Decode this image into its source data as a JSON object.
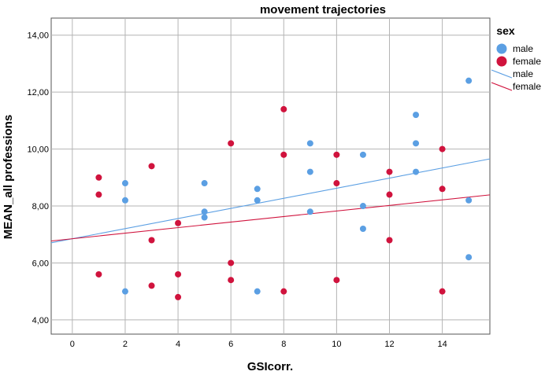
{
  "chart_data": {
    "type": "scatter",
    "title": "movement trajectories",
    "xlabel": "GSIcorr.",
    "ylabel": "MEAN_all professions",
    "xlim": [
      -0.8,
      15.8
    ],
    "ylim": [
      3.5,
      14.6
    ],
    "x_ticks": [
      0,
      2,
      4,
      6,
      8,
      10,
      12,
      14
    ],
    "x_tick_labels": [
      "0",
      "2",
      "4",
      "6",
      "8",
      "10",
      "12",
      "14"
    ],
    "y_ticks": [
      4,
      6,
      8,
      10,
      12,
      14
    ],
    "y_tick_labels": [
      "4,00",
      "6,00",
      "8,00",
      "10,00",
      "12,00",
      "14,00"
    ],
    "grid": true,
    "legend": {
      "title": "sex",
      "placement": "right",
      "entries": [
        {
          "label": "male",
          "kind": "marker",
          "color": "#5b9fe3"
        },
        {
          "label": "female",
          "kind": "marker",
          "color": "#d0133d"
        },
        {
          "label": "male",
          "kind": "line",
          "color": "#5b9fe3"
        },
        {
          "label": "female",
          "kind": "line",
          "color": "#d0133d"
        }
      ]
    },
    "series": [
      {
        "name": "male",
        "color": "#5b9fe3",
        "points": [
          [
            2,
            8.8
          ],
          [
            2,
            8.2
          ],
          [
            2,
            5.0
          ],
          [
            5,
            8.8
          ],
          [
            5,
            7.8
          ],
          [
            5,
            7.6
          ],
          [
            7,
            8.6
          ],
          [
            7,
            8.2
          ],
          [
            7,
            5.0
          ],
          [
            9,
            10.2
          ],
          [
            9,
            9.2
          ],
          [
            9,
            7.8
          ],
          [
            11,
            9.8
          ],
          [
            11,
            8.0
          ],
          [
            11,
            7.2
          ],
          [
            13,
            11.2
          ],
          [
            13,
            10.2
          ],
          [
            13,
            9.2
          ],
          [
            15,
            12.4
          ],
          [
            15,
            8.2
          ],
          [
            15,
            6.2
          ]
        ],
        "fit_line": {
          "intercept": 6.85,
          "slope": 0.1775
        }
      },
      {
        "name": "female",
        "color": "#d0133d",
        "points": [
          [
            1,
            9.0
          ],
          [
            1,
            8.4
          ],
          [
            1,
            5.6
          ],
          [
            3,
            9.4
          ],
          [
            3,
            6.8
          ],
          [
            3,
            5.2
          ],
          [
            4,
            7.4
          ],
          [
            4,
            5.6
          ],
          [
            4,
            4.8
          ],
          [
            6,
            10.2
          ],
          [
            6,
            6.0
          ],
          [
            6,
            5.4
          ],
          [
            8,
            11.4
          ],
          [
            8,
            9.8
          ],
          [
            8,
            5.0
          ],
          [
            10,
            9.8
          ],
          [
            10,
            8.8
          ],
          [
            10,
            5.4
          ],
          [
            12,
            9.2
          ],
          [
            12,
            8.4
          ],
          [
            12,
            6.8
          ],
          [
            14,
            10.0
          ],
          [
            14,
            8.6
          ],
          [
            14,
            5.0
          ]
        ],
        "fit_line": {
          "intercept": 6.85,
          "slope": 0.0975
        }
      }
    ]
  }
}
